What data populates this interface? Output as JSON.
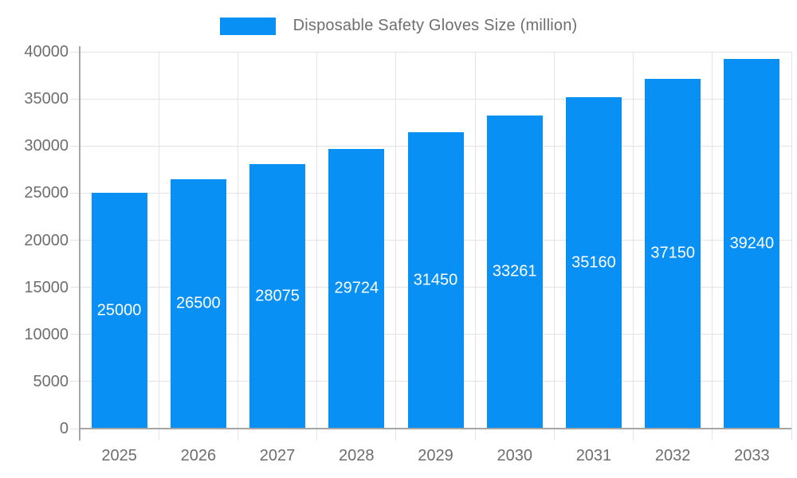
{
  "chart_data": {
    "type": "bar",
    "title": "Disposable Safety Gloves Size (million)",
    "categories": [
      "2025",
      "2026",
      "2027",
      "2028",
      "2029",
      "2030",
      "2031",
      "2032",
      "2033"
    ],
    "values": [
      25000,
      26500,
      28075,
      29724,
      31450,
      33261,
      35160,
      37150,
      39240
    ],
    "xlabel": "",
    "ylabel": "",
    "ylim": [
      0,
      40000
    ],
    "ytick_step": 5000,
    "ytick_labels": [
      "0",
      "5000",
      "10000",
      "15000",
      "20000",
      "25000",
      "30000",
      "35000",
      "40000"
    ],
    "grid": true,
    "legend_position": "top-center",
    "value_labels_position": "inside-center",
    "colors": {
      "bar": "#0990f5",
      "grid": "#e3e3e3",
      "axis": "#a6a6a6",
      "tick_text": "#6e6e6e",
      "value_text": "#ffffff",
      "background": "#ffffff"
    }
  }
}
